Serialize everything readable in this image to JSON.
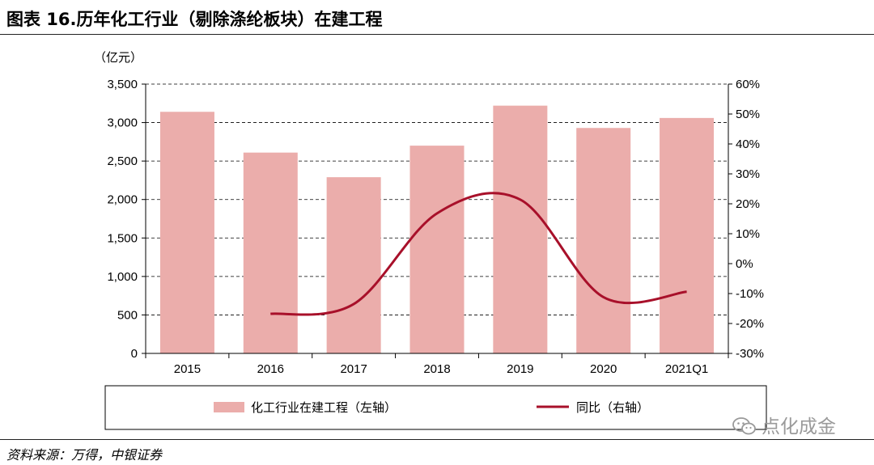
{
  "title": "图表 16.历年化工行业（剔除涤纶板块）在建工程",
  "source": "资料来源：万得，中银证券",
  "watermark": "点化成金",
  "watermark_icon": "wechat-icon",
  "colors": {
    "bar": "#ebadab",
    "line": "#a8102a",
    "grid": "#000000"
  },
  "chart_data": {
    "type": "bar",
    "unit_label": "（亿元）",
    "categories": [
      "2015",
      "2016",
      "2017",
      "2018",
      "2019",
      "2020",
      "2021Q1"
    ],
    "series": [
      {
        "name": "化工行业在建工程（左轴）",
        "type": "bar",
        "axis": "left",
        "values": [
          3140,
          2610,
          2290,
          2700,
          3220,
          2930,
          3060
        ]
      },
      {
        "name": "同比（右轴）",
        "type": "line",
        "axis": "right",
        "smooth": true,
        "values": [
          null,
          -16.8,
          -13.5,
          16.8,
          21.4,
          -11.2,
          -9.4
        ]
      }
    ],
    "y_left": {
      "min": 0,
      "max": 3500,
      "step": 500,
      "ticks": [
        "0",
        "500",
        "1,000",
        "1,500",
        "2,000",
        "2,500",
        "3,000",
        "3,500"
      ]
    },
    "y_right": {
      "min": -30,
      "max": 60,
      "step": 10,
      "ticks": [
        "-30%",
        "-20%",
        "-10%",
        "0%",
        "10%",
        "20%",
        "30%",
        "40%",
        "50%",
        "60%"
      ]
    },
    "grid": true,
    "legend_position": "bottom"
  }
}
